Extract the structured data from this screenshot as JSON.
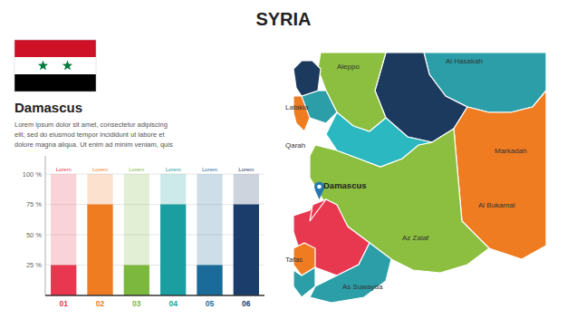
{
  "chart_data": {
    "type": "bar",
    "title": "SYRIA",
    "subtitle": "Damascus",
    "categories": [
      "01",
      "02",
      "03",
      "04",
      "05",
      "06"
    ],
    "values": [
      25,
      75,
      25,
      75,
      25,
      75
    ],
    "colors": [
      "#e8384f",
      "#f07c22",
      "#7cb83e",
      "#1a9ea0",
      "#1a6b9a",
      "#1a3d6b"
    ],
    "ylim": [
      0,
      115
    ],
    "yticks": [
      {
        "value": 25,
        "label": "25 %"
      },
      {
        "value": 50,
        "label": "50 %"
      },
      {
        "value": 75,
        "label": "75 %"
      },
      {
        "value": 100,
        "label": "100 %"
      }
    ],
    "grid": true,
    "annotations": [
      "Lorem",
      "Lorem",
      "Lorem",
      "Lorem",
      "Lorem",
      "Lorem",
      "Lorem ipsum dolor sit amet, consectetur adipiscing\nelit, sed do eiusmod tempor incididunt ut labore et\ndolore magna aliqua. Ut enim ad minim veniam, quis",
      "Al Hasakah",
      "Aleppo",
      "Markadah",
      "Al Bukamal",
      "Latakia",
      "Qarah",
      "Damascus",
      "Az Zalaf",
      "Tafas",
      "As Suwayda"
    ]
  }
}
